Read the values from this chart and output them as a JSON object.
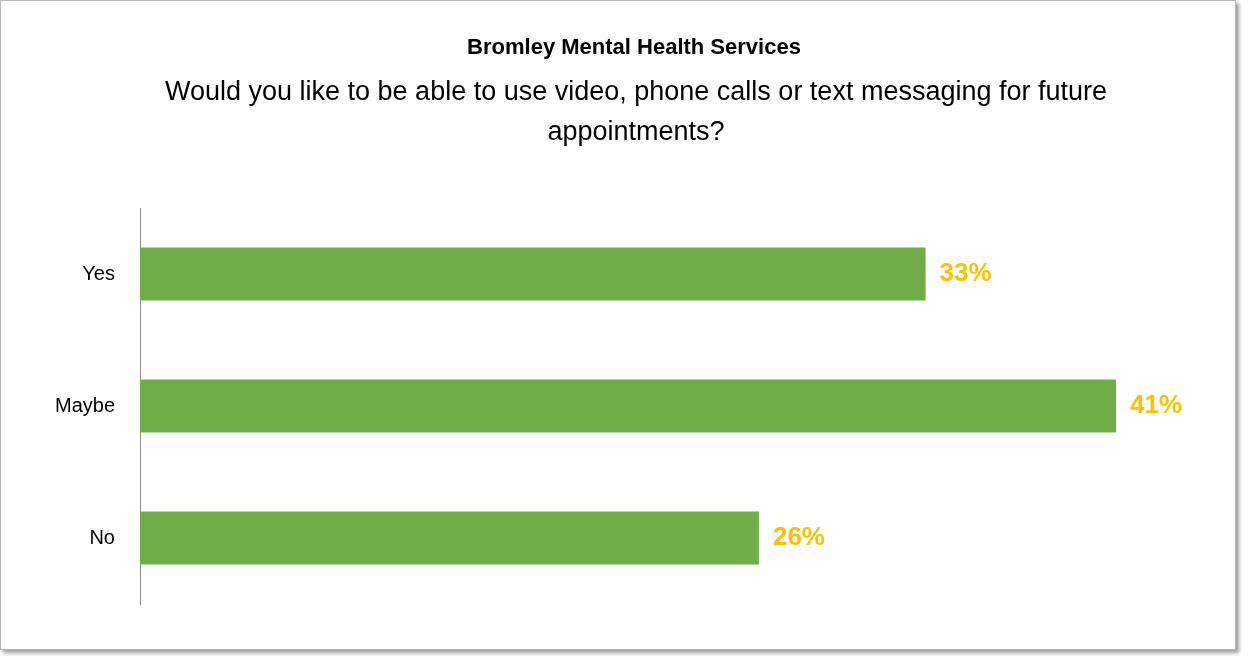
{
  "chart_data": {
    "type": "bar",
    "orientation": "horizontal",
    "title": "Bromley Mental Health Services",
    "subtitle": "Would you like to be able to use video, phone calls or text messaging for future appointments?",
    "categories": [
      "Yes",
      "Maybe",
      "No"
    ],
    "values": [
      33,
      41,
      26
    ],
    "value_labels": [
      "33%",
      "41%",
      "26%"
    ],
    "color": "#70ad47"
  }
}
